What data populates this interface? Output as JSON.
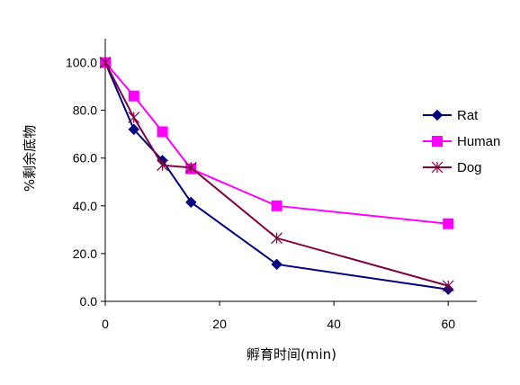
{
  "chart_data": {
    "type": "line",
    "title": "",
    "xlabel": "孵育时间(min)",
    "ylabel": "%剩余底物",
    "xlim": [
      0,
      65
    ],
    "ylim": [
      0,
      110
    ],
    "x_ticks": [
      0,
      20,
      40,
      60
    ],
    "x_tick_labels": [
      "0",
      "20",
      "40",
      "60"
    ],
    "y_ticks": [
      0,
      20,
      40,
      60,
      80,
      100
    ],
    "y_tick_labels": [
      "0.0",
      "20.0",
      "40.0",
      "60.0",
      "80.0",
      "100.0"
    ],
    "grid": false,
    "legend_position": "right",
    "series": [
      {
        "name": "Rat",
        "marker": "diamond",
        "color": "#000080",
        "x": [
          0,
          5,
          10,
          15,
          30,
          60
        ],
        "y": [
          100.0,
          72.0,
          59.0,
          41.5,
          15.5,
          5.0
        ]
      },
      {
        "name": "Human",
        "marker": "square",
        "color": "#ff00ff",
        "x": [
          0,
          5,
          10,
          15,
          30,
          60
        ],
        "y": [
          100.0,
          86.0,
          71.0,
          55.5,
          40.0,
          32.5
        ]
      },
      {
        "name": "Dog",
        "marker": "asterisk",
        "color": "#800040",
        "x": [
          0,
          5,
          10,
          15,
          30,
          60
        ],
        "y": [
          100.0,
          77.0,
          57.0,
          56.0,
          26.5,
          6.5
        ]
      }
    ]
  }
}
